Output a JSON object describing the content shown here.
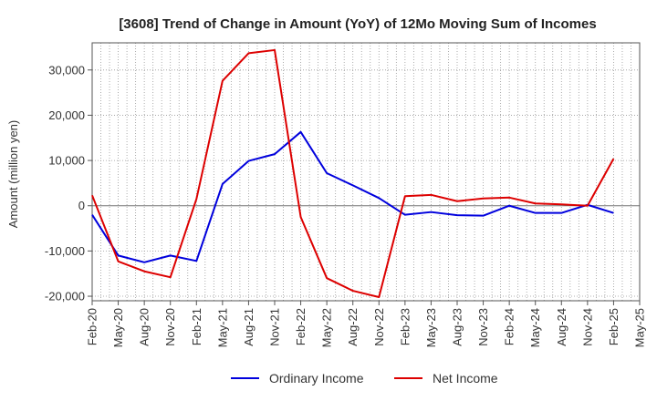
{
  "chart_data": {
    "type": "line",
    "title": "[3608]  Trend of Change in Amount (YoY) of 12Mo Moving Sum of Incomes",
    "ylabel": "Amount (million yen)",
    "xlabel": "",
    "ylim": [
      -21000,
      36000
    ],
    "yticks": [
      -20000,
      -10000,
      0,
      10000,
      20000,
      30000
    ],
    "ytick_labels": [
      "-20,000",
      "-10,000",
      "0",
      "10,000",
      "20,000",
      "30,000"
    ],
    "x": [
      "Feb-20",
      "Mar-20",
      "Apr-20",
      "May-20",
      "Jun-20",
      "Jul-20",
      "Aug-20",
      "Sep-20",
      "Oct-20",
      "Nov-20",
      "Dec-20",
      "Jan-21",
      "Feb-21",
      "Mar-21",
      "Apr-21",
      "May-21",
      "Jun-21",
      "Jul-21",
      "Aug-21",
      "Sep-21",
      "Oct-21",
      "Nov-21",
      "Dec-21",
      "Jan-22",
      "Feb-22",
      "Mar-22",
      "Apr-22",
      "May-22",
      "Jun-22",
      "Jul-22",
      "Aug-22",
      "Sep-22",
      "Oct-22",
      "Nov-22",
      "Dec-22",
      "Jan-23",
      "Feb-23",
      "Mar-23",
      "Apr-23",
      "May-23",
      "Jun-23",
      "Jul-23",
      "Aug-23",
      "Sep-23",
      "Oct-23",
      "Nov-23",
      "Dec-23",
      "Jan-24",
      "Feb-24",
      "Mar-24",
      "Apr-24",
      "May-24",
      "Jun-24",
      "Jul-24",
      "Aug-24",
      "Sep-24",
      "Oct-24",
      "Nov-24",
      "Dec-24",
      "Jan-25",
      "Feb-25",
      "Mar-25",
      "Apr-25",
      "May-25"
    ],
    "xtick_labels": [
      "Feb-20",
      "May-20",
      "Aug-20",
      "Nov-20",
      "Feb-21",
      "May-21",
      "Aug-21",
      "Nov-21",
      "Feb-22",
      "May-22",
      "Aug-22",
      "Nov-22",
      "Feb-23",
      "May-23",
      "Aug-23",
      "Nov-23",
      "Feb-24",
      "May-24",
      "Aug-24",
      "Nov-24",
      "Feb-25",
      "May-25"
    ],
    "grid": true,
    "legend_position": "bottom",
    "series": [
      {
        "name": "Ordinary Income",
        "color": "#0000dd",
        "points": [
          [
            "Feb-20",
            -2000
          ],
          [
            "May-20",
            -11000
          ],
          [
            "Aug-20",
            -12500
          ],
          [
            "Nov-20",
            -11000
          ],
          [
            "Feb-21",
            -12200
          ],
          [
            "May-21",
            4800
          ],
          [
            "Aug-21",
            9900
          ],
          [
            "Nov-21",
            11400
          ],
          [
            "Feb-22",
            16300
          ],
          [
            "May-22",
            7200
          ],
          [
            "Aug-22",
            4500
          ],
          [
            "Nov-22",
            1700
          ],
          [
            "Feb-23",
            -2000
          ],
          [
            "May-23",
            -1400
          ],
          [
            "Aug-23",
            -2100
          ],
          [
            "Nov-23",
            -2200
          ],
          [
            "Feb-24",
            0
          ],
          [
            "May-24",
            -1600
          ],
          [
            "Aug-24",
            -1600
          ],
          [
            "Nov-24",
            200
          ],
          [
            "Feb-25",
            -1600
          ]
        ]
      },
      {
        "name": "Net Income",
        "color": "#dd0000",
        "points": [
          [
            "Feb-20",
            2300
          ],
          [
            "May-20",
            -12300
          ],
          [
            "Aug-20",
            -14500
          ],
          [
            "Nov-20",
            -15800
          ],
          [
            "Feb-21",
            1500
          ],
          [
            "May-21",
            27600
          ],
          [
            "Aug-21",
            33700
          ],
          [
            "Nov-21",
            34400
          ],
          [
            "Feb-22",
            -2500
          ],
          [
            "May-22",
            -16000
          ],
          [
            "Aug-22",
            -18800
          ],
          [
            "Nov-22",
            -20200
          ],
          [
            "Feb-23",
            2100
          ],
          [
            "May-23",
            2400
          ],
          [
            "Aug-23",
            1000
          ],
          [
            "Nov-23",
            1600
          ],
          [
            "Feb-24",
            1800
          ],
          [
            "May-24",
            500
          ],
          [
            "Aug-24",
            300
          ],
          [
            "Nov-24",
            0
          ],
          [
            "Feb-25",
            10400
          ]
        ]
      }
    ]
  }
}
